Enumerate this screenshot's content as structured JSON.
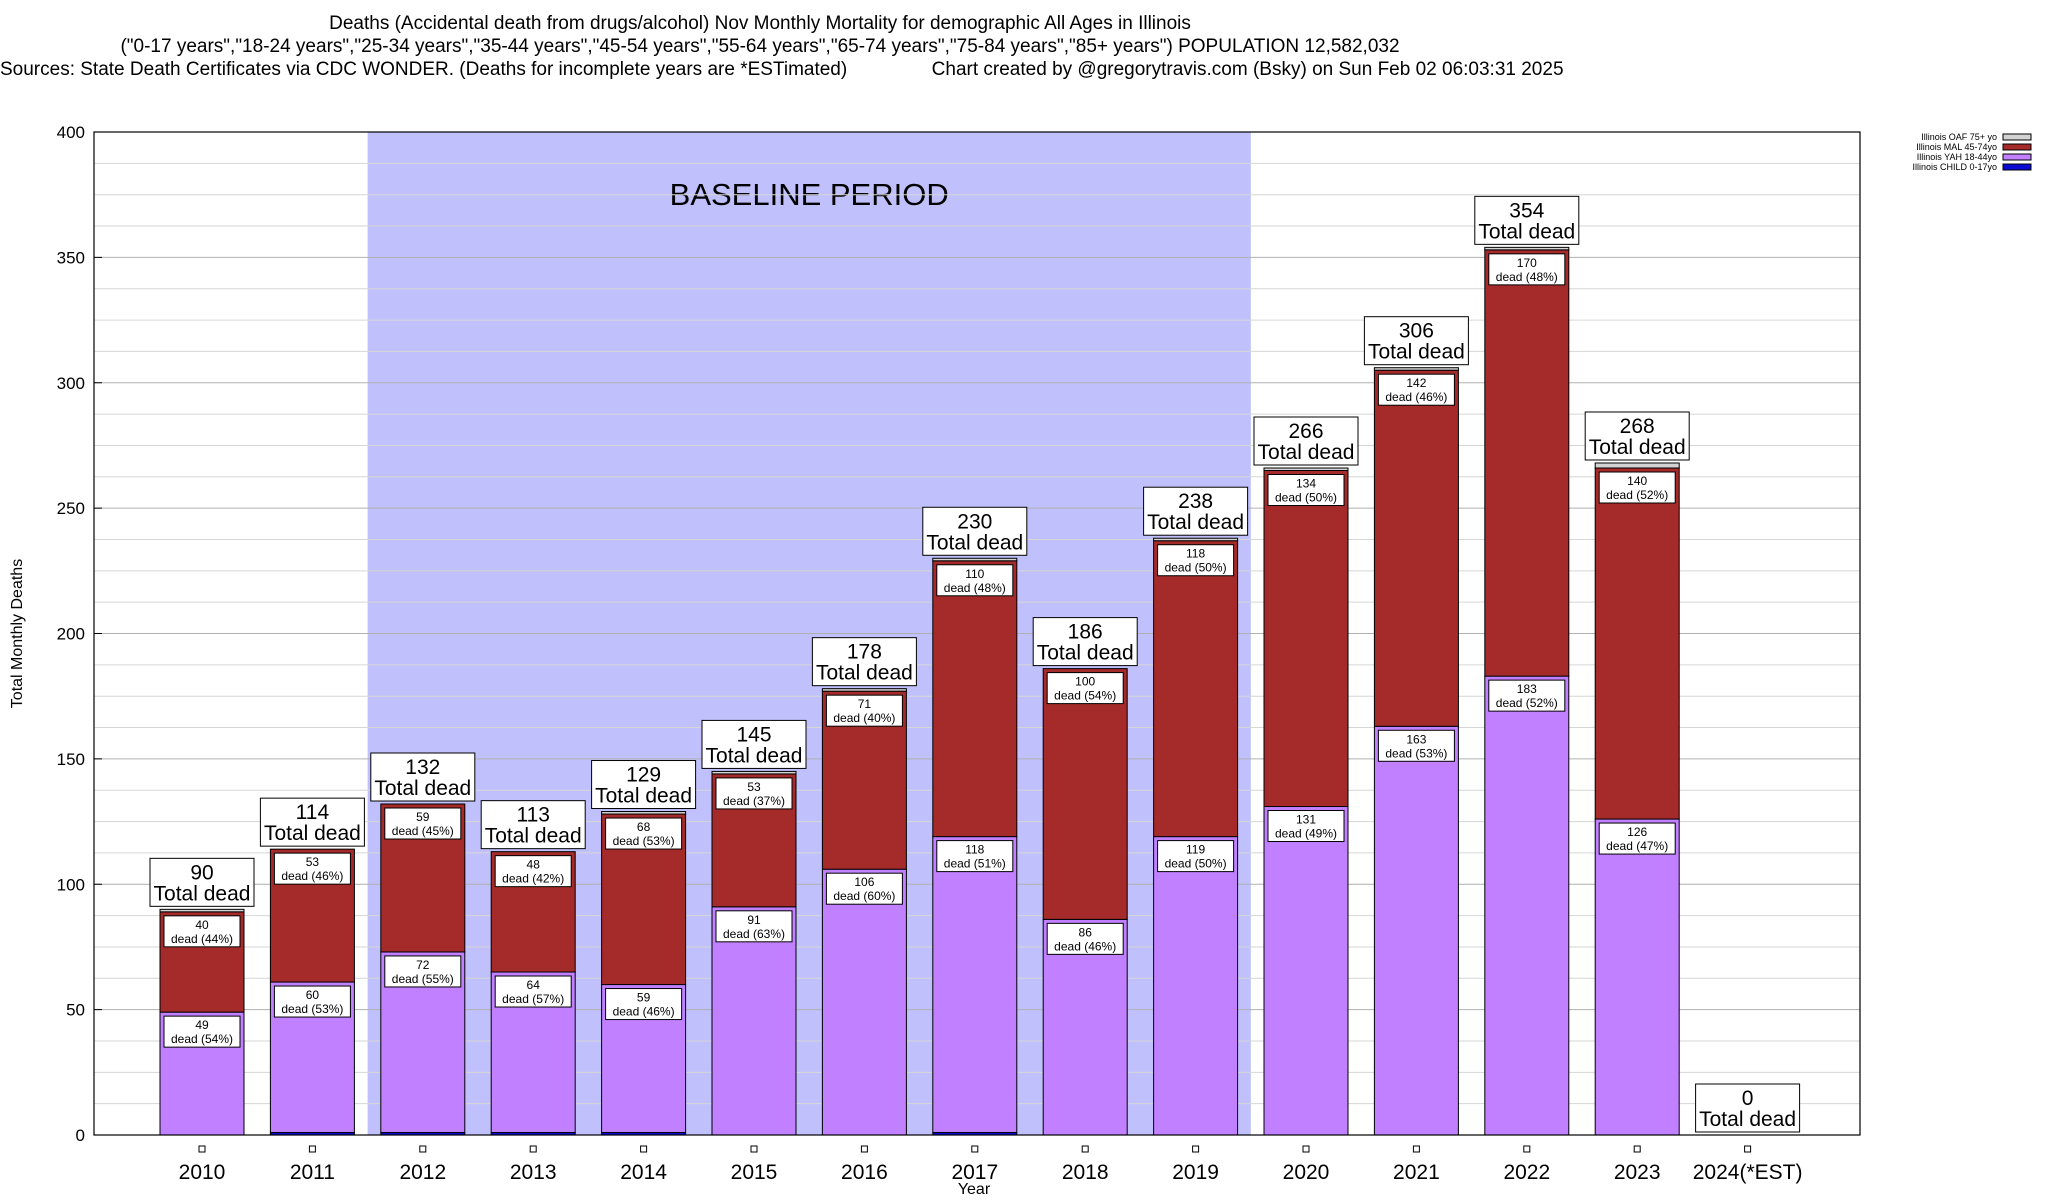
{
  "chart_data": {
    "type": "bar",
    "stacked": true,
    "title": "Deaths (Accidental death from drugs/alcohol) Nov Monthly Mortality for demographic All Ages in Illinois",
    "subtitle": "(\"0-17 years\",\"18-24 years\",\"25-34 years\",\"35-44 years\",\"45-54 years\",\"55-64 years\",\"65-74 years\",\"75-84 years\",\"85+ years\") POPULATION 12,582,032",
    "sources": "Sources: State Death Certificates via CDC WONDER. (Deaths for incomplete years are *ESTimated)",
    "credit": "Chart created by @gregorytravis.com (Bsky) on Sun Feb 02 06:03:31 2025",
    "xlabel": "Year",
    "ylabel": "Total Monthly Deaths",
    "ylim": [
      0,
      400
    ],
    "yticks": [
      0,
      50,
      100,
      150,
      200,
      250,
      300,
      350,
      400
    ],
    "baseline_label": "BASELINE PERIOD",
    "baseline_range": [
      "2012",
      "2019"
    ],
    "categories": [
      "2010",
      "2011",
      "2012",
      "2013",
      "2014",
      "2015",
      "2016",
      "2017",
      "2018",
      "2019",
      "2020",
      "2021",
      "2022",
      "2023",
      "2024(*EST)"
    ],
    "series": [
      {
        "name": "Illinois CHILD 0-17yo",
        "color": "#0b0bd6",
        "values": [
          0,
          1,
          1,
          1,
          1,
          0,
          0,
          1,
          0,
          0,
          0,
          0,
          0,
          0,
          0
        ]
      },
      {
        "name": "Illinois YAH 18-44yo",
        "color": "#c080ff",
        "values": [
          49,
          60,
          72,
          64,
          59,
          91,
          106,
          118,
          86,
          119,
          131,
          163,
          183,
          126,
          0
        ]
      },
      {
        "name": "Illinois MAL 45-74yo",
        "color": "#a52a2a",
        "values": [
          40,
          53,
          59,
          48,
          68,
          53,
          71,
          110,
          100,
          118,
          134,
          142,
          170,
          140,
          0
        ]
      },
      {
        "name": "Illinois OAF 75+ yo",
        "color": "#d3d3d3",
        "values": [
          1,
          0,
          0,
          0,
          1,
          1,
          1,
          1,
          0,
          1,
          1,
          1,
          1,
          2,
          0
        ]
      }
    ],
    "labels_yah": [
      "49\ndead (54%)",
      "60\ndead (53%)",
      "72\ndead (55%)",
      "64\ndead (57%)",
      "59\ndead (46%)",
      "91\ndead (63%)",
      "106\ndead (60%)",
      "118\ndead (51%)",
      "86\ndead (46%)",
      "119\ndead (50%)",
      "131\ndead (49%)",
      "163\ndead (53%)",
      "183\ndead (52%)",
      "126\ndead (47%)",
      ""
    ],
    "labels_mal": [
      "40\ndead (44%)",
      "53\ndead (46%)",
      "59\ndead (45%)",
      "48\ndead (42%)",
      "68\ndead (53%)",
      "53\ndead (37%)",
      "71\ndead (40%)",
      "110\ndead (48%)",
      "100\ndead (54%)",
      "118\ndead (50%)",
      "134\ndead (50%)",
      "142\ndead (46%)",
      "170\ndead (48%)",
      "140\ndead (52%)",
      ""
    ],
    "totals": [
      90,
      114,
      132,
      113,
      129,
      145,
      178,
      230,
      186,
      238,
      266,
      306,
      354,
      268,
      0
    ],
    "total_caption": "Total dead"
  }
}
